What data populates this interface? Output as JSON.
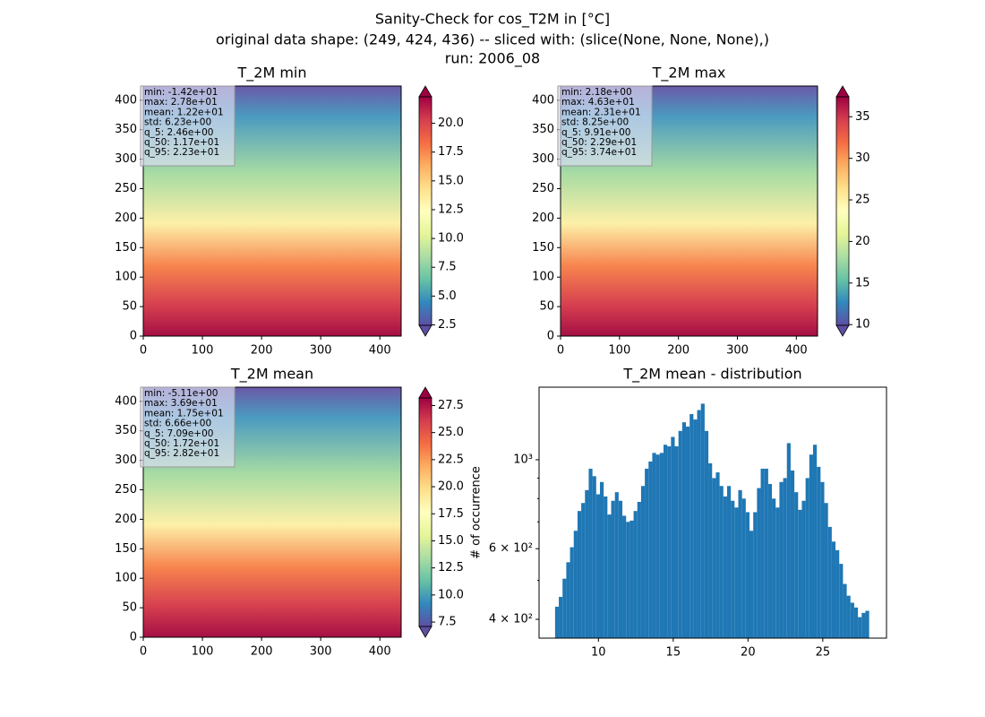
{
  "suptitle": [
    "Sanity-Check for cos_T2M in [°C]",
    "original data shape: (249, 424, 436) -- sliced with: (slice(None, None, None),)",
    "run: 2006_08"
  ],
  "chart_data": [
    {
      "type": "heatmap",
      "title": "T_2M min",
      "xlim": [
        0,
        436
      ],
      "ylim": [
        0,
        424
      ],
      "xticks": [
        0,
        100,
        200,
        300,
        400
      ],
      "yticks": [
        0,
        50,
        100,
        150,
        200,
        250,
        300,
        350,
        400
      ],
      "cmap": "Spectral_r",
      "clim": [
        2.46,
        22.3
      ],
      "extend": "both",
      "cticks": [
        2.5,
        {
          "value": 5,
          "label": "5.0"
        },
        7.5,
        {
          "value": 10,
          "label": "10.0"
        },
        12.5,
        {
          "value": 15,
          "label": "15.0"
        },
        17.5,
        {
          "value": 20,
          "label": "20.0"
        }
      ],
      "stats": [
        "min: -1.42e+01",
        "max: 2.78e+01",
        "mean: 1.22e+01",
        "std: 6.23e+00",
        "q_5: 2.46e+00",
        "q_50: 1.17e+01",
        "q_95: 2.23e+01"
      ]
    },
    {
      "type": "heatmap",
      "title": "T_2M max",
      "xlim": [
        0,
        436
      ],
      "ylim": [
        0,
        424
      ],
      "xticks": [
        0,
        100,
        200,
        300,
        400
      ],
      "yticks": [
        0,
        50,
        100,
        150,
        200,
        250,
        300,
        350,
        400
      ],
      "cmap": "Spectral_r",
      "clim": [
        9.91,
        37.4
      ],
      "extend": "both",
      "cticks": [
        10,
        15,
        20,
        25,
        30,
        35
      ],
      "stats": [
        "min: 2.18e+00",
        "max: 4.63e+01",
        "mean: 2.31e+01",
        "std: 8.25e+00",
        "q_5: 9.91e+00",
        "q_50: 2.29e+01",
        "q_95: 3.74e+01"
      ]
    },
    {
      "type": "heatmap",
      "title": "T_2M mean",
      "xlim": [
        0,
        436
      ],
      "ylim": [
        0,
        424
      ],
      "xticks": [
        0,
        100,
        200,
        300,
        400
      ],
      "yticks": [
        0,
        50,
        100,
        150,
        200,
        250,
        300,
        350,
        400
      ],
      "cmap": "Spectral_r",
      "clim": [
        7.09,
        28.2
      ],
      "extend": "both",
      "cticks": [
        7.5,
        {
          "value": 10,
          "label": "10.0"
        },
        12.5,
        {
          "value": 15,
          "label": "15.0"
        },
        17.5,
        {
          "value": 20,
          "label": "20.0"
        },
        22.5,
        {
          "value": 25,
          "label": "25.0"
        },
        27.5
      ],
      "stats": [
        "min: -5.11e+00",
        "max: 3.69e+01",
        "mean: 1.75e+01",
        "std: 6.66e+00",
        "q_5: 7.09e+00",
        "q_50: 1.72e+01",
        "q_95: 2.82e+01"
      ]
    },
    {
      "type": "histogram",
      "title": "T_2M mean - distribution",
      "ylabel": "# of occurrence",
      "color": "#1f77b4",
      "bins": [
        7.1,
        7.35,
        7.6,
        7.85,
        8.1,
        8.35,
        8.6,
        8.85,
        9.1,
        9.35,
        9.6,
        9.85,
        10.1,
        10.35,
        10.6,
        10.85,
        11.1,
        11.35,
        11.6,
        11.85,
        12.1,
        12.35,
        12.6,
        12.85,
        13.1,
        13.35,
        13.6,
        13.85,
        14.1,
        14.35,
        14.6,
        14.85,
        15.1,
        15.35,
        15.6,
        15.85,
        16.1,
        16.35,
        16.6,
        16.85,
        17.1,
        17.35,
        17.6,
        17.85,
        18.1,
        18.35,
        18.6,
        18.85,
        19.1,
        19.35,
        19.6,
        19.85,
        20.1,
        20.35,
        20.6,
        20.85,
        21.1,
        21.35,
        21.6,
        21.85,
        22.1,
        22.35,
        22.6,
        22.85,
        23.1,
        23.35,
        23.6,
        23.85,
        24.1,
        24.35,
        24.6,
        24.85,
        25.1,
        25.35,
        25.6,
        25.85,
        26.1,
        26.35,
        26.6,
        26.85,
        27.1,
        27.35,
        27.6,
        27.85,
        28.1
      ],
      "values": [
        430,
        455,
        505,
        555,
        605,
        665,
        745,
        780,
        840,
        950,
        910,
        820,
        880,
        810,
        730,
        790,
        830,
        790,
        725,
        700,
        705,
        745,
        785,
        860,
        950,
        990,
        1040,
        1030,
        1040,
        1090,
        1080,
        1140,
        1080,
        1180,
        1240,
        1210,
        1300,
        1260,
        1330,
        1380,
        1180,
        980,
        900,
        930,
        860,
        810,
        860,
        790,
        760,
        840,
        800,
        740,
        665,
        740,
        850,
        950,
        950,
        870,
        800,
        760,
        880,
        900,
        1100,
        940,
        830,
        750,
        790,
        900,
        1030,
        1090,
        960,
        880,
        780,
        680,
        625,
        595,
        550,
        490,
        458,
        440,
        428,
        405,
        415,
        420
      ],
      "xlim": [
        6.03,
        29.26
      ],
      "xticks": [
        10,
        15,
        20,
        25
      ],
      "ylog": true,
      "ylim": [
        359,
        1517
      ],
      "yticks": [
        {
          "value": 400,
          "label": "4 × 10²"
        },
        {
          "value": 600,
          "label": "6 × 10²"
        },
        {
          "value": 1000,
          "label": "10³"
        }
      ],
      "yminor": [
        500,
        700,
        800,
        900
      ]
    }
  ]
}
